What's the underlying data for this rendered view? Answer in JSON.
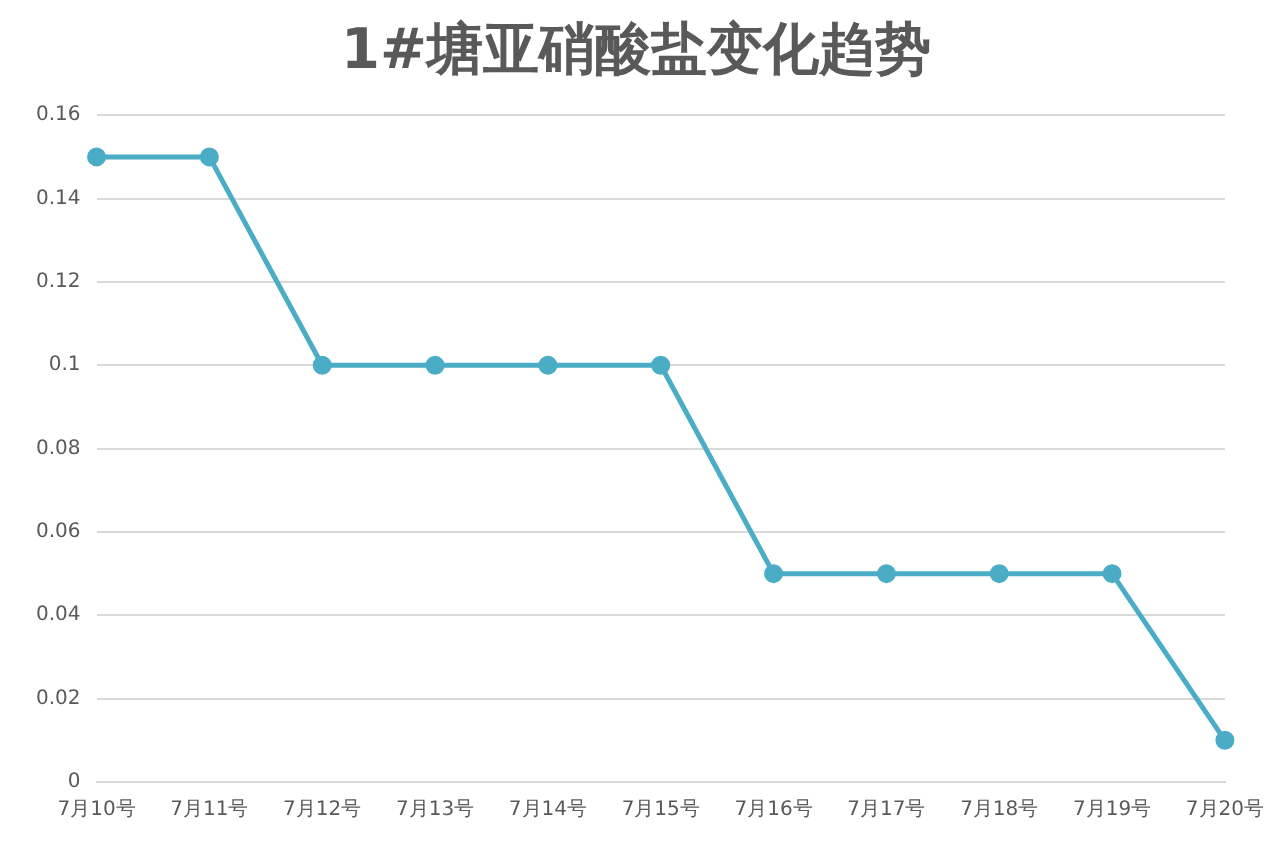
{
  "chart_data": {
    "type": "line",
    "title": "1#塘亚硝酸盐变化趋势",
    "categories": [
      "7月10号",
      "7月11号",
      "7月12号",
      "7月13号",
      "7月14号",
      "7月15号",
      "7月16号",
      "7月17号",
      "7月18号",
      "7月19号",
      "7月20号"
    ],
    "series": [
      {
        "color": "#4bacc6",
        "values": [
          0.15,
          0.15,
          0.1,
          0.1,
          0.1,
          0.1,
          0.05,
          0.05,
          0.05,
          0.05,
          0.01
        ]
      }
    ],
    "ylim": [
      0,
      0.16
    ],
    "yticks": [
      0,
      0.02,
      0.04,
      0.06,
      0.08,
      0.1,
      0.12,
      0.14,
      0.16
    ],
    "grid": "y",
    "legend": false,
    "marker": "circle",
    "line_style": "solid"
  }
}
